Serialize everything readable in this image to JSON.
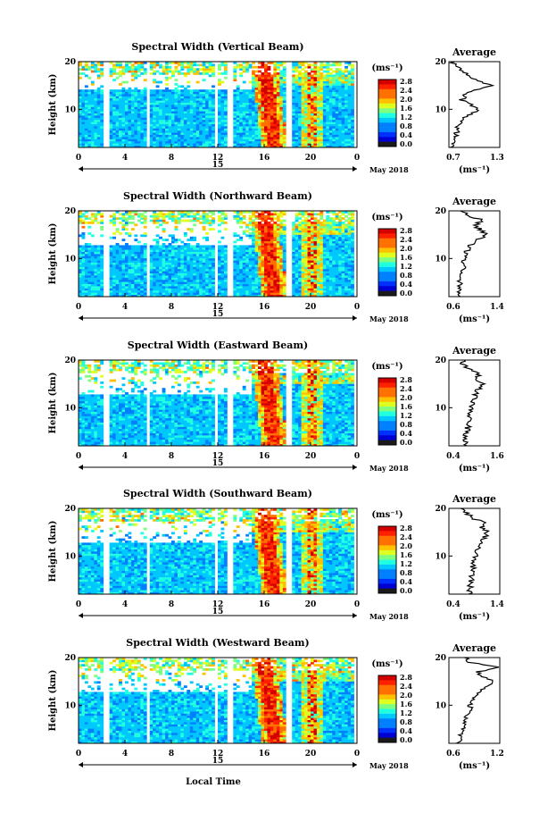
{
  "common": {
    "x_tick_labels": [
      "0",
      "4",
      "8",
      "12",
      "16",
      "20",
      "0"
    ],
    "day_label": "15",
    "month_label": "May 2018",
    "height_ticks": [
      "20",
      "10"
    ],
    "ylabel": "Height (km)",
    "xlabel": "Local Time",
    "colorbar_unit": "(ms⁻¹)",
    "colorbar_labels": [
      "2.8",
      "2.4",
      "2.0",
      "1.6",
      "1.2",
      "0.8",
      "0.4",
      "0.0"
    ],
    "average_title": "Average",
    "average_unit": "(ms⁻¹)"
  },
  "chart_data": [
    {
      "type": "heatmap",
      "title": "Spectral Width (Vertical Beam)",
      "xlabel": "",
      "ylabel": "Height (km)",
      "xlim": [
        0,
        24
      ],
      "ylim": [
        2,
        20
      ],
      "avg_xlim": [
        0.7,
        1.3
      ],
      "avg_xticks": [
        "0.7",
        "1.3"
      ],
      "avg_profile": [
        [
          2,
          0.75
        ],
        [
          4,
          0.78
        ],
        [
          6,
          0.8
        ],
        [
          8,
          0.85
        ],
        [
          9,
          0.95
        ],
        [
          10,
          1.05
        ],
        [
          11,
          0.95
        ],
        [
          12,
          0.85
        ],
        [
          13,
          0.9
        ],
        [
          14,
          1.0
        ],
        [
          15,
          1.2
        ],
        [
          16,
          1.05
        ],
        [
          17,
          0.95
        ],
        [
          18,
          0.85
        ],
        [
          19,
          0.78
        ],
        [
          20,
          0.75
        ]
      ]
    },
    {
      "type": "heatmap",
      "title": "Spectral Width (Northward Beam)",
      "xlabel": "",
      "ylabel": "Height (km)",
      "xlim": [
        0,
        24
      ],
      "ylim": [
        2,
        20
      ],
      "avg_xlim": [
        0.6,
        1.4
      ],
      "avg_xticks": [
        "0.6",
        "1.4"
      ],
      "avg_profile": [
        [
          2,
          0.75
        ],
        [
          4,
          0.75
        ],
        [
          6,
          0.8
        ],
        [
          8,
          0.82
        ],
        [
          10,
          0.85
        ],
        [
          12,
          0.9
        ],
        [
          13,
          0.95
        ],
        [
          14,
          1.05
        ],
        [
          15,
          1.2
        ],
        [
          16,
          1.1
        ],
        [
          17,
          1.0
        ],
        [
          18,
          1.15
        ],
        [
          19,
          0.9
        ],
        [
          20,
          0.8
        ]
      ]
    },
    {
      "type": "heatmap",
      "title": "Spectral Width (Eastward Beam)",
      "xlabel": "",
      "ylabel": "Height (km)",
      "xlim": [
        0,
        24
      ],
      "ylim": [
        2,
        20
      ],
      "avg_xlim": [
        0.4,
        1.6
      ],
      "avg_xticks": [
        "0.4",
        "1.6"
      ],
      "avg_profile": [
        [
          2,
          0.8
        ],
        [
          4,
          0.8
        ],
        [
          6,
          0.85
        ],
        [
          8,
          0.9
        ],
        [
          10,
          0.95
        ],
        [
          12,
          1.0
        ],
        [
          13,
          1.05
        ],
        [
          14,
          1.1
        ],
        [
          15,
          1.2
        ],
        [
          16,
          1.0
        ],
        [
          17,
          1.1
        ],
        [
          18,
          0.9
        ],
        [
          19,
          0.75
        ],
        [
          20,
          0.7
        ]
      ]
    },
    {
      "type": "heatmap",
      "title": "Spectral Width (Southward Beam)",
      "xlabel": "",
      "ylabel": "Height (km)",
      "xlim": [
        0,
        24
      ],
      "ylim": [
        2,
        20
      ],
      "avg_xlim": [
        0.4,
        1.4
      ],
      "avg_xticks": [
        "0.4",
        "1.4"
      ],
      "avg_profile": [
        [
          2,
          0.8
        ],
        [
          4,
          0.82
        ],
        [
          6,
          0.85
        ],
        [
          8,
          0.88
        ],
        [
          10,
          0.92
        ],
        [
          12,
          0.98
        ],
        [
          13,
          1.05
        ],
        [
          14,
          1.1
        ],
        [
          15,
          1.15
        ],
        [
          16,
          1.05
        ],
        [
          17,
          1.1
        ],
        [
          18,
          0.85
        ],
        [
          19,
          0.75
        ],
        [
          20,
          0.65
        ]
      ]
    },
    {
      "type": "heatmap",
      "title": "Spectral Width (Westward Beam)",
      "xlabel": "Local Time",
      "ylabel": "Height (km)",
      "xlim": [
        0,
        24
      ],
      "ylim": [
        2,
        20
      ],
      "avg_xlim": [
        0.6,
        1.2
      ],
      "avg_xticks": [
        "0.6",
        "1.2"
      ],
      "avg_profile": [
        [
          2,
          0.72
        ],
        [
          4,
          0.75
        ],
        [
          6,
          0.78
        ],
        [
          8,
          0.82
        ],
        [
          10,
          0.86
        ],
        [
          12,
          0.9
        ],
        [
          13,
          0.95
        ],
        [
          14,
          1.05
        ],
        [
          15,
          1.15
        ],
        [
          16,
          1.0
        ],
        [
          17,
          0.95
        ],
        [
          18,
          1.2
        ],
        [
          19,
          0.85
        ],
        [
          20,
          0.8
        ]
      ]
    }
  ]
}
